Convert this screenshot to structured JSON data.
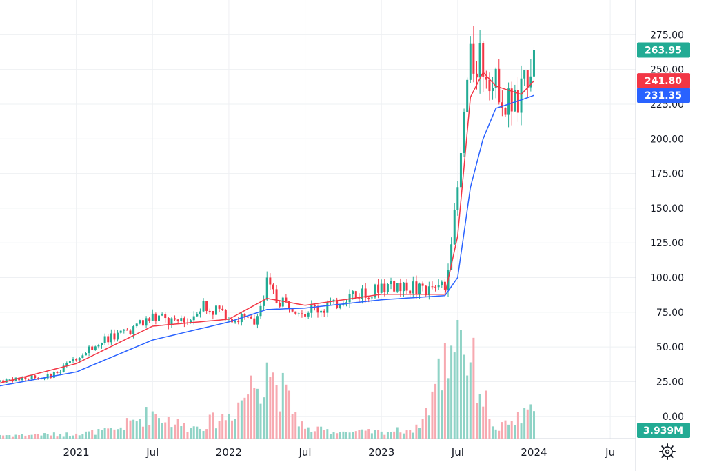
{
  "chart_data": {
    "type": "candlestick",
    "title": "",
    "xlabel": "",
    "ylabel": "",
    "ylim": [
      -16,
      300
    ],
    "y_ticks": [
      "275.00",
      "250.00",
      "225.00",
      "200.00",
      "175.00",
      "150.00",
      "125.00",
      "100.00",
      "75.00",
      "50.00",
      "25.00",
      "0.00"
    ],
    "x_ticks": [
      {
        "label": "2021",
        "date": "2021-01"
      },
      {
        "label": "Jul",
        "date": "2021-07"
      },
      {
        "label": "2022",
        "date": "2022-01"
      },
      {
        "label": "Jul",
        "date": "2022-07"
      },
      {
        "label": "2023",
        "date": "2023-01"
      },
      {
        "label": "Jul",
        "date": "2023-07"
      },
      {
        "label": "2024",
        "date": "2024-01"
      },
      {
        "label": "Ju",
        "date": "2024-07"
      }
    ],
    "x_range": [
      "2020-07",
      "2024-09"
    ],
    "grid": true,
    "legend": "none",
    "last_price": {
      "label": "263.95",
      "value": 263.95
    },
    "ma_labels": [
      {
        "label": "241.80",
        "value": 241.8,
        "color": "#f23645"
      },
      {
        "label": "231.35",
        "value": 231.35,
        "color": "#2962ff"
      }
    ],
    "volume_label": "3.939M",
    "colors": {
      "up": "#22ab94",
      "down": "#f23645",
      "ma_fast": "#f23645",
      "ma_slow": "#2962ff",
      "price_line": "#22ab94",
      "volume_up": "#8fd3c6",
      "volume_down": "#f7a9b0"
    },
    "series": [
      {
        "name": "price",
        "type": "candlestick",
        "x": [
          "2020-07",
          "2020-09",
          "2020-11",
          "2021-01",
          "2021-03",
          "2021-05",
          "2021-07",
          "2021-09",
          "2021-11",
          "2022-01",
          "2022-03",
          "2022-04",
          "2022-05",
          "2022-07",
          "2022-09",
          "2022-11",
          "2023-01",
          "2023-03",
          "2023-05",
          "2023-06",
          "2023-07",
          "2023-08",
          "2023-09",
          "2023-10",
          "2023-11",
          "2023-12",
          "2024-01"
        ],
        "close": [
          25,
          28,
          29,
          42,
          55,
          60,
          72,
          66,
          80,
          72,
          68,
          95,
          82,
          76,
          79,
          88,
          92,
          94,
          89,
          95,
          160,
          260,
          255,
          240,
          225,
          232,
          263.95
        ]
      },
      {
        "name": "MA fast",
        "type": "line",
        "x": [
          "2020-07",
          "2021-01",
          "2021-07",
          "2022-01",
          "2022-04",
          "2022-07",
          "2023-01",
          "2023-06",
          "2023-07",
          "2023-08",
          "2023-09",
          "2023-10",
          "2023-12",
          "2024-01"
        ],
        "values": [
          24,
          38,
          65,
          70,
          85,
          80,
          88,
          88,
          130,
          230,
          248,
          238,
          232,
          241.8
        ]
      },
      {
        "name": "MA slow",
        "type": "line",
        "x": [
          "2020-07",
          "2021-01",
          "2021-07",
          "2022-01",
          "2022-04",
          "2022-07",
          "2023-01",
          "2023-06",
          "2023-07",
          "2023-08",
          "2023-09",
          "2023-10",
          "2023-12",
          "2024-01"
        ],
        "values": [
          22,
          32,
          55,
          68,
          77,
          78,
          84,
          87,
          100,
          165,
          200,
          222,
          228,
          231.35
        ]
      },
      {
        "name": "volume",
        "type": "bar",
        "x": [
          "2020-07",
          "2020-10",
          "2021-01",
          "2021-04",
          "2021-07",
          "2021-10",
          "2022-01",
          "2022-04",
          "2022-07",
          "2022-10",
          "2023-01",
          "2023-04",
          "2023-07",
          "2023-10",
          "2024-01"
        ],
        "values": [
          0.5,
          0.6,
          0.7,
          1.3,
          3.9,
          1.5,
          3.5,
          10.9,
          1.4,
          1.0,
          1.0,
          1.5,
          17.0,
          1.3,
          3.939
        ]
      }
    ]
  }
}
